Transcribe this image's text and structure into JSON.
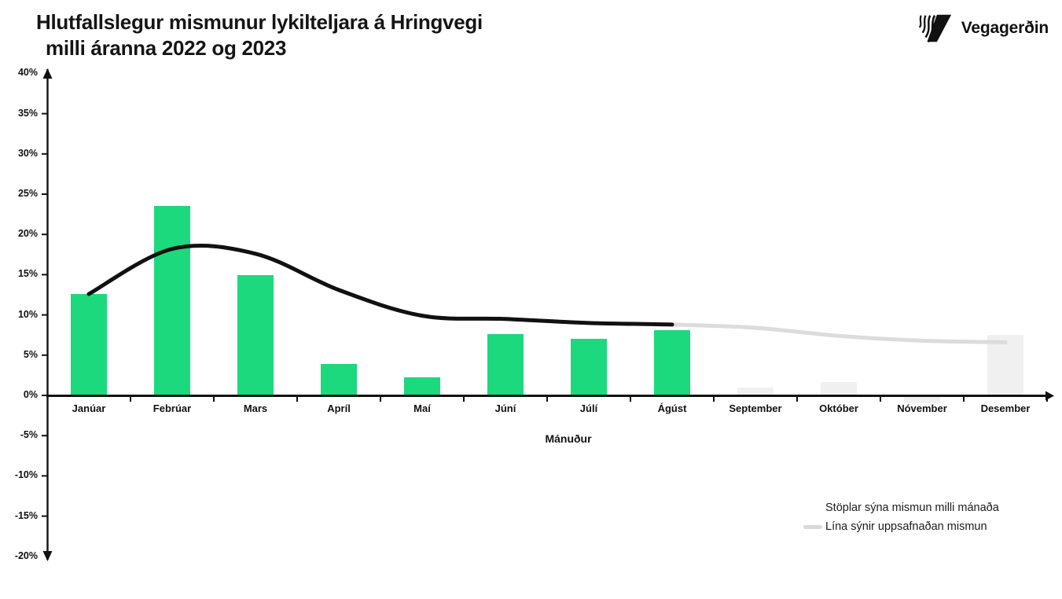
{
  "header": {
    "title_line1": "Hlutfallslegur mismunur lykilteljara á Hringvegi",
    "title_line2": "milli áranna 2022 og 2023",
    "logo_text": "Vegagerðin"
  },
  "chart_data": {
    "type": "bar",
    "title": "Hlutfallslegur mismunur lykilteljara á Hringvegi milli áranna 2022 og 2023",
    "categories": [
      "Janúar",
      "Febrúar",
      "Mars",
      "Apríl",
      "Maí",
      "Júní",
      "Júlí",
      "Ágúst",
      "September",
      "Október",
      "Nóvember",
      "Desember"
    ],
    "series": [
      {
        "name": "Stöplar sýna mismun milli mánaða",
        "type": "bar",
        "values": [
          12.6,
          23.5,
          14.9,
          3.9,
          2.2,
          7.6,
          7.0,
          8.1,
          1.0,
          1.7,
          -1.0,
          7.5
        ],
        "unit": "%",
        "color_jan_to_agust": "#1DD97E",
        "color_sep_to_des": "#F0F0F0",
        "color_split_after": "Ágúst"
      },
      {
        "name": "Lína sýnir uppsafnaðan mismun",
        "type": "line",
        "values": [
          12.6,
          18.2,
          17.6,
          13.1,
          9.9,
          9.5,
          9.0,
          8.8,
          8.4,
          7.4,
          6.8,
          6.6
        ],
        "unit": "%",
        "color_jan_to_agust": "#111111",
        "color_sep_to_des": "#DCDCDC",
        "color_split_after": "Ágúst"
      }
    ],
    "xlabel": "Mánuður",
    "ylabel": "",
    "ylim": [
      -20,
      40
    ],
    "y_tick_step": 5,
    "y_tick_labels": [
      "40%",
      "35%",
      "30%",
      "25%",
      "20%",
      "15%",
      "10%",
      "5%",
      "0%",
      "-5%",
      "-10%",
      "-15%",
      "-20%"
    ],
    "grid": "off",
    "legend_position": "bottom-right"
  },
  "legend": {
    "bar_label": "Stöplar sýna mismun milli mánaða",
    "line_label": "Lína sýnir uppsafnaðan mismun",
    "line_swatch_color": "#D9D9D9"
  },
  "colors": {
    "bar_green": "#1DD97E",
    "bar_gray": "#F0F0F0",
    "line_black": "#111111",
    "line_gray": "#DCDCDC",
    "axis": "#111111",
    "background": "#FFFFFF"
  }
}
